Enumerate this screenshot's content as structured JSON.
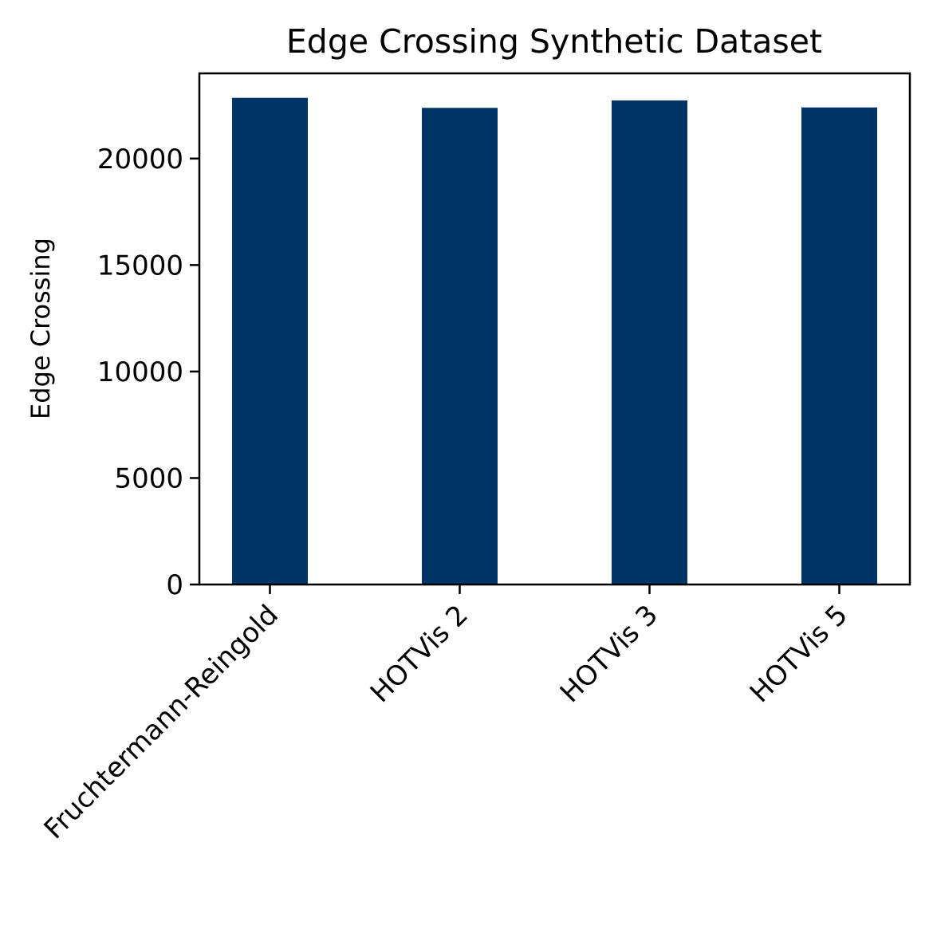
{
  "chart_data": {
    "type": "bar",
    "title": "Edge Crossing Synthetic Dataset",
    "xlabel": "",
    "ylabel": "Edge Crossing",
    "categories": [
      "Fruchtermann-Reingold",
      "HOTVis 2",
      "HOTVis 3",
      "HOTVis 5"
    ],
    "values": [
      22850,
      22380,
      22730,
      22400
    ],
    "ylim": [
      0,
      24000
    ],
    "yticks": [
      0,
      5000,
      10000,
      15000,
      20000
    ],
    "ytick_labels": [
      "0",
      "5000",
      "10000",
      "15000",
      "20000"
    ],
    "bar_color": "#003366",
    "grid": false,
    "legend": "none"
  }
}
